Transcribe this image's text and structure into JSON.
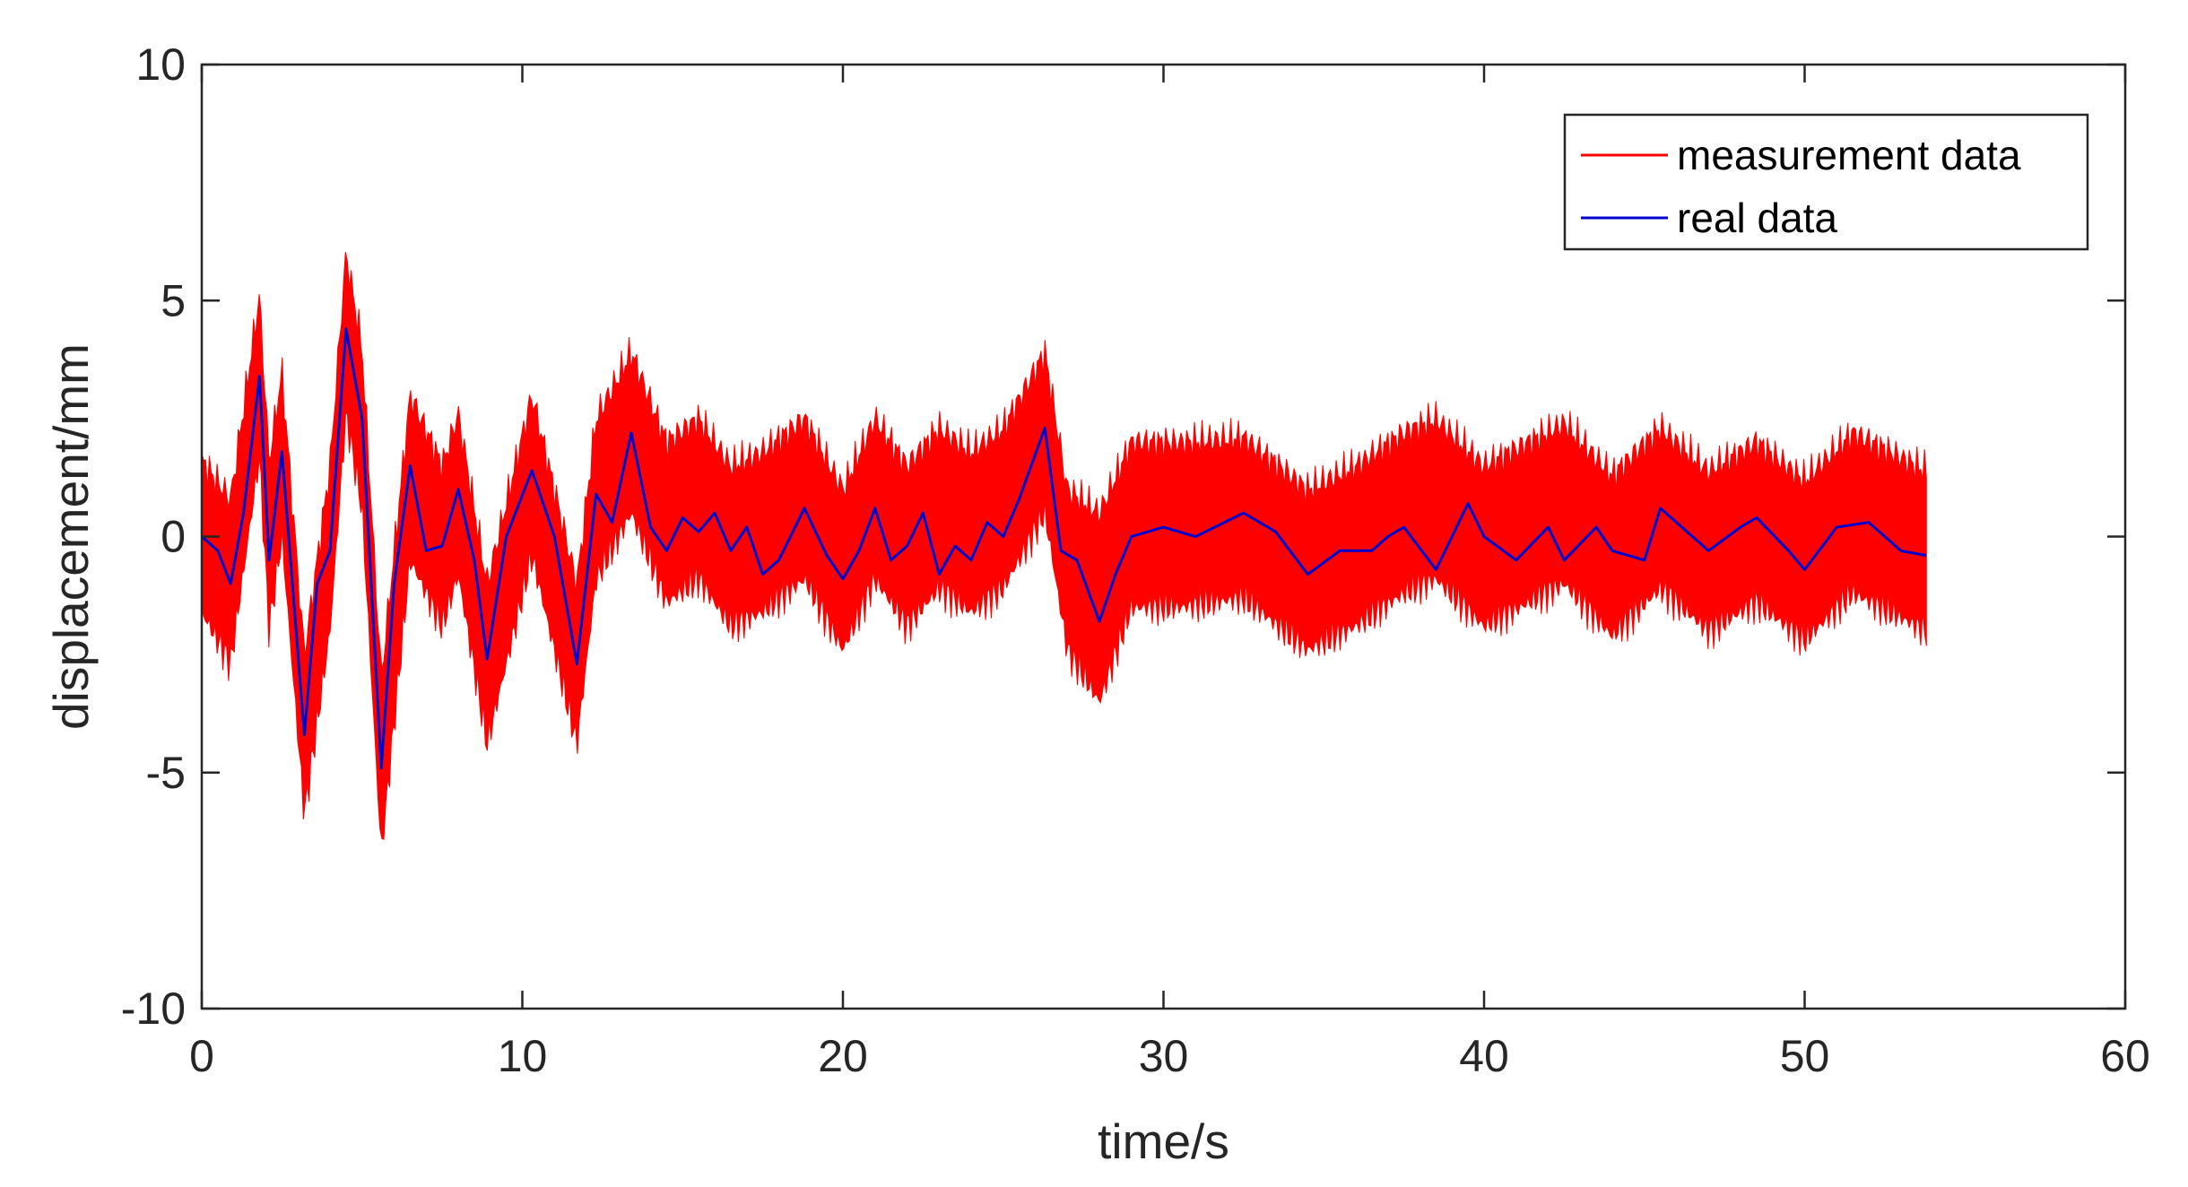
{
  "chart_data": {
    "type": "line",
    "title": "",
    "xlabel": "time/s",
    "ylabel": "displacement/mm",
    "xlim": [
      0,
      60
    ],
    "ylim": [
      -10,
      10
    ],
    "x_ticks": [
      "0",
      "10",
      "20",
      "30",
      "40",
      "50",
      "60"
    ],
    "y_ticks": [
      "10",
      "5",
      "0",
      "-5",
      "-10"
    ],
    "legend_position": "top-right",
    "grid": false,
    "series": [
      {
        "name": "measurement data",
        "color": "#ff0000",
        "style": "dense noisy band (noise amplitude ±1.7)",
        "band_upper": [
          [
            0.0,
            1.6
          ],
          [
            0.9,
            0.8
          ],
          [
            1.8,
            5.1
          ],
          [
            2.1,
            1.6
          ],
          [
            2.5,
            3.5
          ],
          [
            3.2,
            -2.5
          ],
          [
            4.0,
            1.5
          ],
          [
            4.5,
            6.0
          ],
          [
            5.0,
            4.0
          ],
          [
            5.6,
            -3.0
          ],
          [
            6.5,
            3.0
          ],
          [
            7.5,
            1.5
          ],
          [
            8.0,
            2.6
          ],
          [
            8.9,
            -1.0
          ],
          [
            10.3,
            3.0
          ],
          [
            11.7,
            -1.0
          ],
          [
            12.3,
            2.5
          ],
          [
            13.4,
            3.9
          ],
          [
            14.5,
            2.0
          ],
          [
            15.5,
            2.5
          ],
          [
            16.5,
            1.5
          ],
          [
            17.5,
            1.8
          ],
          [
            18.8,
            2.5
          ],
          [
            20.0,
            1.0
          ],
          [
            21.0,
            2.5
          ],
          [
            22.0,
            1.5
          ],
          [
            23.0,
            2.3
          ],
          [
            24.0,
            1.8
          ],
          [
            25.0,
            2.3
          ],
          [
            26.3,
            3.9
          ],
          [
            27.0,
            1.0
          ],
          [
            28.0,
            0.5
          ],
          [
            29.0,
            2.0
          ],
          [
            30.5,
            2.0
          ],
          [
            32.5,
            2.1
          ],
          [
            34.5,
            1.0
          ],
          [
            36.0,
            1.5
          ],
          [
            37.5,
            2.2
          ],
          [
            38.5,
            2.5
          ],
          [
            40.0,
            1.5
          ],
          [
            42.5,
            2.4
          ],
          [
            44.0,
            1.3
          ],
          [
            45.5,
            2.3
          ],
          [
            47.0,
            1.4
          ],
          [
            48.5,
            2.0
          ],
          [
            50.0,
            1.2
          ],
          [
            51.5,
            2.2
          ],
          [
            53.8,
            1.4
          ]
        ],
        "band_lower": [
          [
            0.0,
            -1.6
          ],
          [
            0.9,
            -2.7
          ],
          [
            1.8,
            1.7
          ],
          [
            2.1,
            -2.0
          ],
          [
            2.5,
            0.0
          ],
          [
            3.2,
            -5.9
          ],
          [
            4.0,
            -2.0
          ],
          [
            4.5,
            2.6
          ],
          [
            5.0,
            0.6
          ],
          [
            5.6,
            -6.7
          ],
          [
            6.5,
            -0.5
          ],
          [
            7.5,
            -1.9
          ],
          [
            8.0,
            -0.8
          ],
          [
            8.9,
            -4.4
          ],
          [
            10.3,
            -0.4
          ],
          [
            11.7,
            -4.4
          ],
          [
            12.3,
            -0.9
          ],
          [
            13.4,
            0.5
          ],
          [
            14.5,
            -1.4
          ],
          [
            15.5,
            -0.9
          ],
          [
            16.5,
            -1.9
          ],
          [
            17.5,
            -1.6
          ],
          [
            18.8,
            -0.9
          ],
          [
            20.0,
            -2.4
          ],
          [
            21.0,
            -0.9
          ],
          [
            22.0,
            -1.9
          ],
          [
            23.0,
            -1.1
          ],
          [
            24.0,
            -1.6
          ],
          [
            25.0,
            -1.1
          ],
          [
            26.3,
            0.5
          ],
          [
            27.0,
            -2.4
          ],
          [
            28.0,
            -3.5
          ],
          [
            29.0,
            -1.5
          ],
          [
            30.5,
            -1.5
          ],
          [
            32.5,
            -1.3
          ],
          [
            34.5,
            -2.4
          ],
          [
            36.0,
            -1.9
          ],
          [
            37.5,
            -1.2
          ],
          [
            38.5,
            -0.9
          ],
          [
            40.0,
            -1.9
          ],
          [
            42.5,
            -1.0
          ],
          [
            44.0,
            -2.1
          ],
          [
            45.5,
            -1.1
          ],
          [
            47.0,
            -2.0
          ],
          [
            48.5,
            -1.4
          ],
          [
            50.0,
            -2.2
          ],
          [
            51.5,
            -1.2
          ],
          [
            53.8,
            -2.0
          ]
        ]
      },
      {
        "name": "real data",
        "color": "#0000cc",
        "x": [
          0.0,
          0.5,
          0.9,
          1.3,
          1.8,
          2.1,
          2.5,
          3.2,
          3.6,
          4.0,
          4.5,
          5.0,
          5.6,
          6.0,
          6.5,
          7.0,
          7.5,
          8.0,
          8.5,
          8.9,
          9.5,
          10.3,
          11.0,
          11.7,
          12.3,
          12.8,
          13.4,
          14.0,
          14.5,
          15.0,
          15.5,
          16.0,
          16.5,
          17.0,
          17.5,
          18.0,
          18.8,
          19.5,
          20.0,
          20.5,
          21.0,
          21.5,
          22.0,
          22.5,
          23.0,
          23.5,
          24.0,
          24.5,
          25.0,
          25.5,
          26.3,
          26.8,
          27.3,
          28.0,
          28.5,
          29.0,
          30.0,
          31.0,
          32.5,
          33.5,
          34.5,
          35.5,
          36.5,
          37.0,
          37.5,
          38.5,
          39.5,
          40.0,
          41.0,
          42.0,
          42.5,
          43.5,
          44.0,
          45.0,
          45.5,
          46.5,
          47.0,
          48.0,
          48.5,
          49.5,
          50.0,
          51.0,
          52.0,
          53.0,
          53.8
        ],
        "y": [
          0.0,
          -0.3,
          -1.0,
          0.5,
          3.4,
          -0.5,
          1.8,
          -4.2,
          -1.0,
          -0.3,
          4.4,
          2.5,
          -4.9,
          -1.0,
          1.5,
          -0.3,
          -0.2,
          1.0,
          -0.5,
          -2.6,
          0.0,
          1.4,
          0.0,
          -2.7,
          0.9,
          0.3,
          2.2,
          0.2,
          -0.3,
          0.4,
          0.1,
          0.5,
          -0.3,
          0.2,
          -0.8,
          -0.5,
          0.6,
          -0.4,
          -0.9,
          -0.3,
          0.6,
          -0.5,
          -0.2,
          0.5,
          -0.8,
          -0.2,
          -0.5,
          0.3,
          0.0,
          0.8,
          2.3,
          -0.3,
          -0.5,
          -1.8,
          -0.8,
          0.0,
          0.2,
          0.0,
          0.5,
          0.1,
          -0.8,
          -0.3,
          -0.3,
          0.0,
          0.2,
          -0.7,
          0.7,
          0.0,
          -0.5,
          0.2,
          -0.5,
          0.2,
          -0.3,
          -0.5,
          0.6,
          0.0,
          -0.3,
          0.2,
          0.4,
          -0.3,
          -0.7,
          0.2,
          0.3,
          -0.3,
          -0.4
        ]
      }
    ]
  }
}
